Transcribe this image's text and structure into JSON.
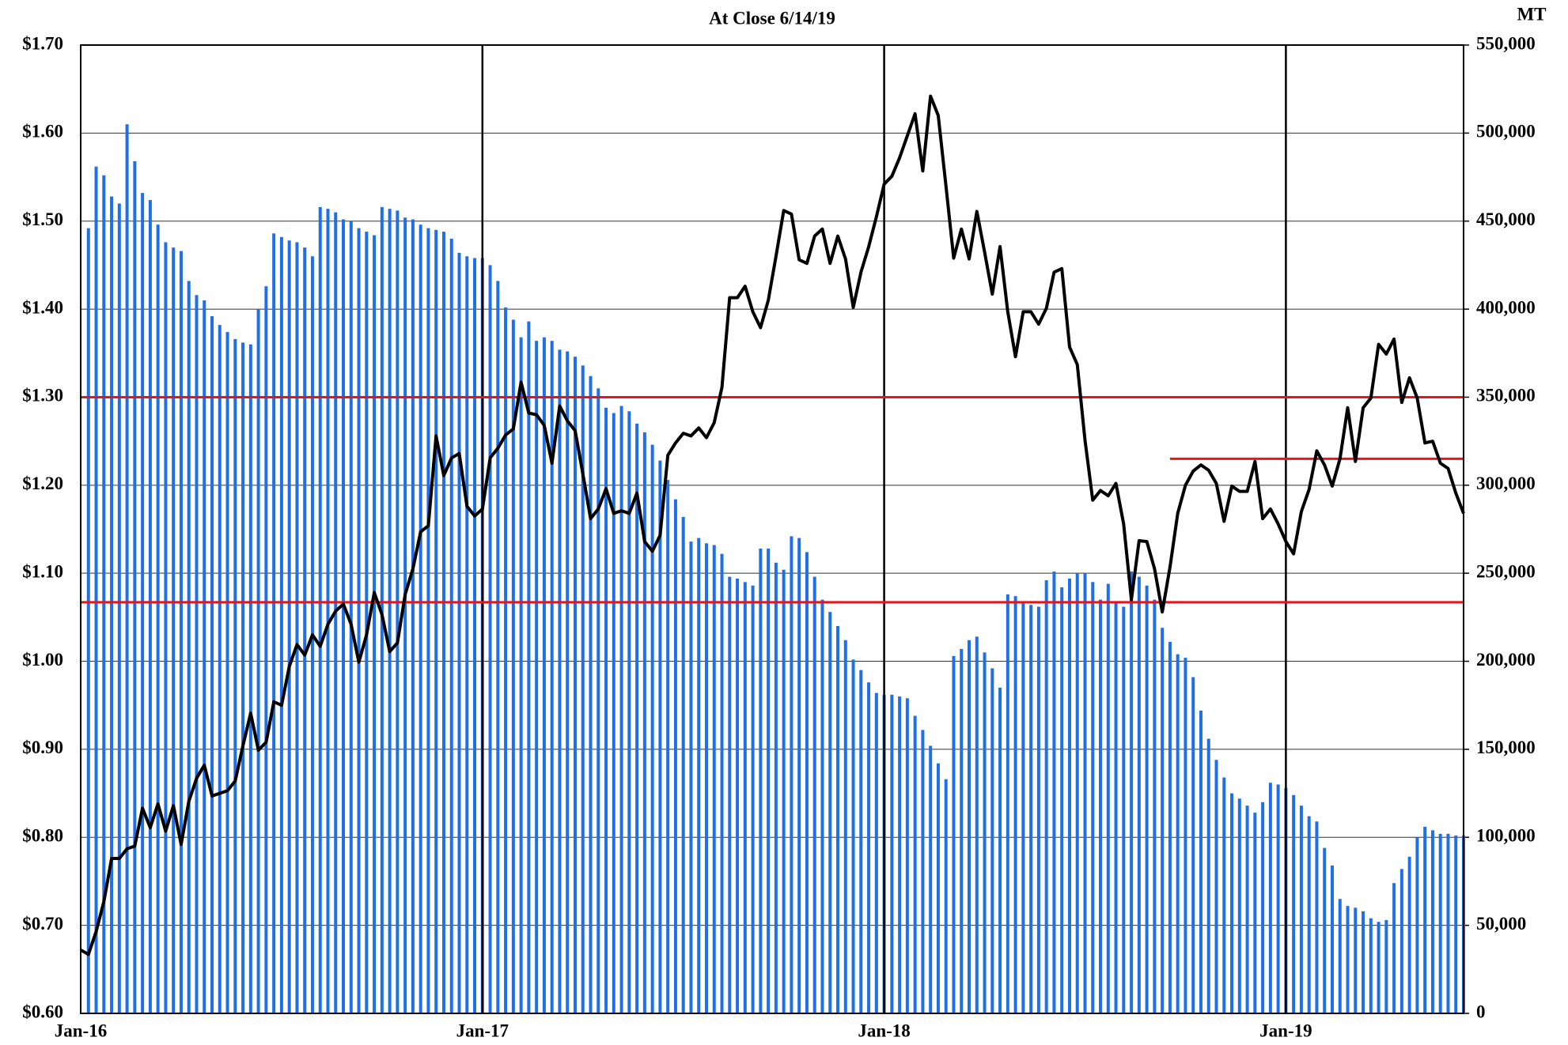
{
  "chart_data": {
    "type": "bar_line",
    "title": "At Close 6/14/19",
    "y2_label": "MT",
    "categories": [
      "Jan-16",
      null,
      null,
      null,
      null,
      null,
      null,
      null,
      null,
      null,
      null,
      null,
      null,
      null,
      null,
      null,
      null,
      null,
      null,
      null,
      null,
      null,
      null,
      null,
      null,
      null,
      null,
      null,
      null,
      null,
      null,
      null,
      null,
      null,
      null,
      null,
      null,
      null,
      null,
      null,
      null,
      null,
      null,
      null,
      null,
      null,
      null,
      null,
      null,
      null,
      null,
      null,
      "Jan-17",
      null,
      null,
      null,
      null,
      null,
      null,
      null,
      null,
      null,
      null,
      null,
      null,
      null,
      null,
      null,
      null,
      null,
      null,
      null,
      null,
      null,
      null,
      null,
      null,
      null,
      null,
      null,
      null,
      null,
      null,
      null,
      null,
      null,
      null,
      null,
      null,
      null,
      null,
      null,
      null,
      null,
      null,
      null,
      null,
      null,
      null,
      null,
      null,
      null,
      null,
      null,
      "Jan-18",
      null,
      null,
      null,
      null,
      null,
      null,
      null,
      null,
      null,
      null,
      null,
      null,
      null,
      null,
      null,
      null,
      null,
      null,
      null,
      null,
      null,
      null,
      null,
      null,
      null,
      null,
      null,
      null,
      null,
      null,
      null,
      null,
      null,
      null,
      null,
      null,
      null,
      null,
      null,
      null,
      null,
      null,
      null,
      null,
      null,
      null,
      null,
      null,
      null,
      null,
      null,
      "Jan-19",
      null,
      null,
      null,
      null,
      null,
      null,
      null,
      null,
      null,
      null,
      null,
      null,
      null,
      null,
      null,
      null,
      null,
      null,
      null,
      null,
      null,
      null,
      null
    ],
    "series": [
      {
        "type": "bar",
        "axis": "y2",
        "color": "#1f6fe5",
        "values": [
          null,
          446000,
          481000,
          476000,
          464000,
          460000,
          505000,
          484000,
          466000,
          462000,
          448000,
          438000,
          435000,
          433000,
          416000,
          408000,
          405000,
          396000,
          391000,
          387000,
          383000,
          381000,
          380000,
          400000,
          413000,
          443000,
          441000,
          439000,
          438000,
          435000,
          430000,
          458000,
          457000,
          455000,
          451000,
          450000,
          446000,
          444000,
          442000,
          458000,
          457000,
          456000,
          452000,
          451000,
          448000,
          446000,
          445000,
          444000,
          440000,
          432000,
          430000,
          429000,
          429000,
          425000,
          416000,
          401000,
          394000,
          384000,
          393000,
          382000,
          384000,
          382000,
          377000,
          376000,
          373000,
          368000,
          362000,
          355000,
          344000,
          341000,
          345000,
          342000,
          335000,
          330000,
          323000,
          314000,
          303000,
          292000,
          282000,
          268000,
          270000,
          267000,
          266000,
          261000,
          248000,
          247000,
          245000,
          243000,
          264000,
          264000,
          256000,
          252000,
          271000,
          270000,
          262000,
          248000,
          235000,
          228000,
          220000,
          212000,
          201000,
          195000,
          188000,
          182000,
          181000,
          181000,
          180000,
          179000,
          169000,
          161000,
          152000,
          142000,
          133000,
          203000,
          207000,
          212000,
          214000,
          205000,
          196000,
          185000,
          238000,
          237000,
          234000,
          232000,
          231000,
          246000,
          251000,
          242000,
          247000,
          250000,
          250000,
          245000,
          235000,
          244000,
          234000,
          231000,
          251000,
          248000,
          243000,
          235000,
          219000,
          211000,
          204000,
          202000,
          191000,
          172000,
          156000,
          144000,
          134000,
          125000,
          122000,
          118000,
          114000,
          120000,
          131000,
          130000,
          128000,
          124000,
          118000,
          112000,
          109000,
          94000,
          84000,
          65000,
          61000,
          60000,
          58000,
          54000,
          52000,
          53000,
          74000,
          82000,
          89000,
          100000,
          106000,
          104000,
          102000,
          102000,
          101000,
          101000
        ]
      },
      {
        "type": "line",
        "axis": "y",
        "color": "#000000",
        "values": [
          0.672,
          0.667,
          0.693,
          0.727,
          0.776,
          0.776,
          0.787,
          0.79,
          0.833,
          0.811,
          0.838,
          0.807,
          0.836,
          0.792,
          0.841,
          0.867,
          0.882,
          0.847,
          0.85,
          0.853,
          0.864,
          0.904,
          0.941,
          0.899,
          0.908,
          0.954,
          0.95,
          0.994,
          1.019,
          1.007,
          1.03,
          1.017,
          1.042,
          1.057,
          1.065,
          1.042,
          0.999,
          1.03,
          1.078,
          1.053,
          1.011,
          1.021,
          1.076,
          1.105,
          1.147,
          1.154,
          1.256,
          1.211,
          1.231,
          1.236,
          1.176,
          1.165,
          1.173,
          1.231,
          1.242,
          1.257,
          1.264,
          1.317,
          1.282,
          1.28,
          1.268,
          1.225,
          1.29,
          1.273,
          1.262,
          1.213,
          1.162,
          1.173,
          1.196,
          1.168,
          1.171,
          1.168,
          1.191,
          1.136,
          1.125,
          1.143,
          1.234,
          1.248,
          1.259,
          1.256,
          1.265,
          1.254,
          1.271,
          1.311,
          1.413,
          1.413,
          1.426,
          1.397,
          1.379,
          1.41,
          1.46,
          1.512,
          1.508,
          1.456,
          1.452,
          1.483,
          1.491,
          1.452,
          1.483,
          1.457,
          1.402,
          1.442,
          1.471,
          1.505,
          1.542,
          1.551,
          1.572,
          1.597,
          1.622,
          1.557,
          1.642,
          1.62,
          1.54,
          1.458,
          1.491,
          1.457,
          1.511,
          1.465,
          1.417,
          1.471,
          1.397,
          1.346,
          1.397,
          1.397,
          1.383,
          1.401,
          1.442,
          1.446,
          1.357,
          1.337,
          1.251,
          1.183,
          1.194,
          1.188,
          1.202,
          1.156,
          1.07,
          1.137,
          1.136,
          1.105,
          1.056,
          1.107,
          1.168,
          1.2,
          1.216,
          1.223,
          1.217,
          1.202,
          1.159,
          1.199,
          1.193,
          1.193,
          1.227,
          1.162,
          1.173,
          1.156,
          1.136,
          1.122,
          1.17,
          1.195,
          1.239,
          1.223,
          1.199,
          1.23,
          1.288,
          1.227,
          1.288,
          1.299,
          1.36,
          1.349,
          1.366,
          1.294,
          1.322,
          1.299,
          1.248,
          1.25,
          1.225,
          1.219,
          1.191,
          1.168
        ]
      }
    ],
    "reference_lines": [
      {
        "value": 1.3,
        "color": "#e8141c"
      },
      {
        "value": 1.067,
        "color": "#e8141c"
      },
      {
        "value": 1.23,
        "color": "#e8141c",
        "start": 141
      }
    ],
    "ylim": [
      0.6,
      1.7
    ],
    "yticks": [
      {
        "value": 0.6,
        "label": "$0.60"
      },
      {
        "value": 0.7,
        "label": "$0.70"
      },
      {
        "value": 0.8,
        "label": "$0.80"
      },
      {
        "value": 0.9,
        "label": "$0.90"
      },
      {
        "value": 1.0,
        "label": "$1.00"
      },
      {
        "value": 1.1,
        "label": "$1.10"
      },
      {
        "value": 1.2,
        "label": "$1.20"
      },
      {
        "value": 1.3,
        "label": "$1.30"
      },
      {
        "value": 1.4,
        "label": "$1.40"
      },
      {
        "value": 1.5,
        "label": "$1.50"
      },
      {
        "value": 1.6,
        "label": "$1.60"
      },
      {
        "value": 1.7,
        "label": "$1.70"
      }
    ],
    "y2lim": [
      0,
      550000
    ],
    "y2ticks": [
      0,
      {
        "value": 50000,
        "label": "50,000"
      },
      {
        "value": 100000,
        "label": "100,000"
      },
      {
        "value": 150000,
        "label": "150,000"
      },
      {
        "value": 200000,
        "label": "200,000"
      },
      {
        "value": 250000,
        "label": "250,000"
      },
      {
        "value": 300000,
        "label": "300,000"
      },
      {
        "value": 350000,
        "label": "350,000"
      },
      {
        "value": 400000,
        "label": "400,000"
      },
      {
        "value": 450000,
        "label": "450,000"
      },
      {
        "value": 500000,
        "label": "500,000"
      },
      {
        "value": 550000,
        "label": "550,000"
      }
    ],
    "grid": true
  }
}
